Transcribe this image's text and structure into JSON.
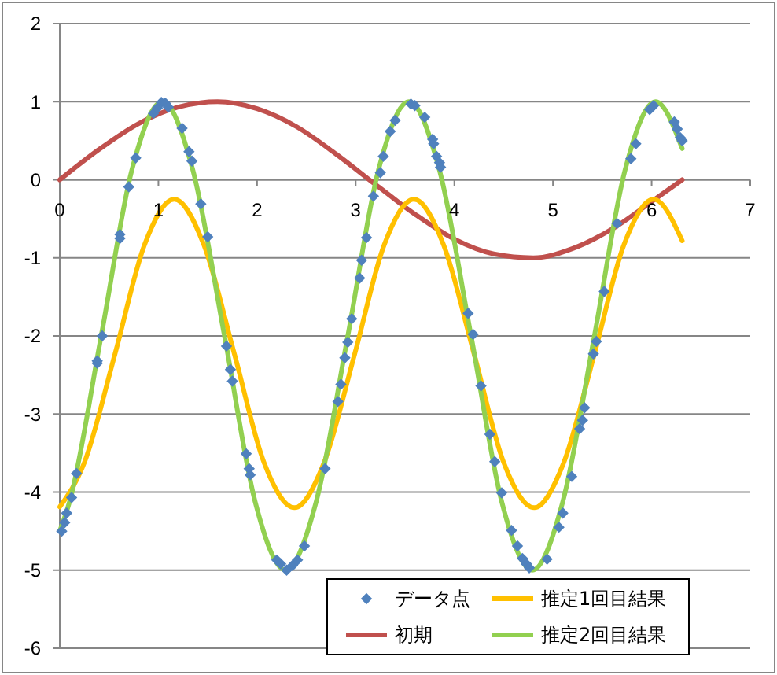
{
  "chart_data": {
    "type": "line",
    "xlim": [
      0,
      7
    ],
    "xticks": [
      0,
      1,
      2,
      3,
      4,
      5,
      6,
      7
    ],
    "ylim": [
      -6,
      2
    ],
    "yticks": [
      -6,
      -5,
      -4,
      -3,
      -2,
      -1,
      0,
      1,
      2
    ],
    "grid": "y",
    "legend": "bottom right",
    "series": [
      {
        "name": "データ点",
        "type": "scatter",
        "marker": "diamond",
        "color": "#4f81bd",
        "x": [
          0.02,
          0.05,
          0.07,
          0.12,
          0.17,
          0.38,
          0.38,
          0.43,
          0.61,
          0.61,
          0.7,
          0.77,
          0.95,
          0.99,
          1.03,
          1.07,
          1.1,
          1.24,
          1.31,
          1.34,
          1.43,
          1.5,
          1.69,
          1.73,
          1.75,
          1.89,
          1.92,
          1.93,
          2.2,
          2.24,
          2.3,
          2.36,
          2.41,
          2.48,
          2.69,
          2.82,
          2.85,
          2.89,
          2.92,
          2.96,
          3.04,
          3.06,
          3.11,
          3.18,
          3.25,
          3.28,
          3.35,
          3.4,
          3.56,
          3.6,
          3.7,
          3.78,
          3.79,
          3.82,
          3.85,
          3.86,
          4.14,
          4.19,
          4.27,
          4.36,
          4.41,
          4.48,
          4.58,
          4.64,
          4.69,
          4.73,
          4.76,
          4.94,
          5.06,
          5.1,
          5.19,
          5.27,
          5.3,
          5.32,
          5.41,
          5.44,
          5.52,
          5.65,
          5.79,
          5.84,
          5.98,
          6.02,
          6.23,
          6.26,
          6.29,
          6.31
        ],
        "values": [
          -4.5,
          -4.39,
          -4.27,
          -4.07,
          -3.76,
          -2.32,
          -2.35,
          -2.0,
          -0.7,
          -0.75,
          -0.09,
          0.28,
          0.85,
          0.92,
          0.99,
          0.98,
          0.93,
          0.66,
          0.36,
          0.24,
          -0.31,
          -0.73,
          -2.13,
          -2.43,
          -2.58,
          -3.51,
          -3.7,
          -3.78,
          -4.87,
          -4.92,
          -5.0,
          -4.94,
          -4.87,
          -4.69,
          -3.7,
          -2.84,
          -2.62,
          -2.28,
          -2.08,
          -1.78,
          -1.26,
          -1.03,
          -0.74,
          -0.21,
          0.09,
          0.3,
          0.62,
          0.76,
          0.97,
          0.95,
          0.8,
          0.52,
          0.46,
          0.3,
          0.22,
          0.16,
          -1.71,
          -1.98,
          -2.64,
          -3.26,
          -3.61,
          -4.01,
          -4.49,
          -4.69,
          -4.85,
          -4.92,
          -4.97,
          -4.86,
          -4.45,
          -4.27,
          -3.8,
          -3.19,
          -3.08,
          -2.92,
          -2.23,
          -2.07,
          -1.43,
          -0.56,
          0.27,
          0.46,
          0.9,
          0.95,
          0.74,
          0.65,
          0.54,
          0.5
        ]
      },
      {
        "name": "初期",
        "marker": "none",
        "color": "#c0504d",
        "x": [
          0,
          0.4,
          0.8,
          1.2,
          1.6,
          2.0,
          2.4,
          2.8,
          3.2,
          3.6,
          4.0,
          4.4,
          4.8,
          5.2,
          5.6,
          6.0,
          6.31
        ],
        "values": [
          0,
          0.39,
          0.72,
          0.93,
          1,
          0.91,
          0.68,
          0.33,
          -0.06,
          -0.44,
          -0.76,
          -0.95,
          -1,
          -0.88,
          -0.63,
          -0.28,
          0
        ]
      },
      {
        "name": "推定1回目結果",
        "marker": "none",
        "color": "#ffc000",
        "x": [
          0,
          0.25,
          0.56,
          0.86,
          1.16,
          1.46,
          1.77,
          2.07,
          2.38,
          2.68,
          2.99,
          3.29,
          3.59,
          3.89,
          4.2,
          4.5,
          4.81,
          5.11,
          5.42,
          5.72,
          6.02,
          6.31
        ],
        "values": [
          -4.19,
          -3.62,
          -2.23,
          -0.83,
          -0.25,
          -0.83,
          -2.23,
          -3.62,
          -4.2,
          -3.62,
          -2.23,
          -0.83,
          -0.25,
          -0.83,
          -2.23,
          -3.62,
          -4.2,
          -3.62,
          -2.23,
          -0.83,
          -0.25,
          -0.78
        ]
      },
      {
        "name": "推定2回目結果",
        "marker": "none",
        "color": "#92d050",
        "x": [
          0,
          0.1,
          0.42,
          0.73,
          1.04,
          1.35,
          1.67,
          1.98,
          2.29,
          2.6,
          2.92,
          3.23,
          3.54,
          3.85,
          4.17,
          4.48,
          4.79,
          5.1,
          5.42,
          5.73,
          6.04,
          6.31
        ],
        "values": [
          -4.5,
          -4.12,
          -2,
          0.12,
          1,
          0.12,
          -2,
          -4.12,
          -5,
          -4.12,
          -2,
          0.12,
          1,
          0.12,
          -2,
          -4.12,
          -5,
          -4.12,
          -2,
          0.12,
          1,
          0.4
        ]
      }
    ]
  }
}
